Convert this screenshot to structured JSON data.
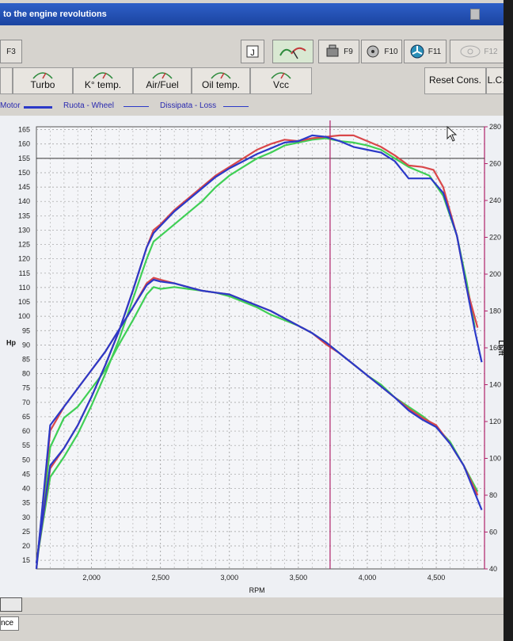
{
  "window": {
    "title": "to the engine revolutions"
  },
  "toolbar": {
    "f3": "F3",
    "f9": "F9",
    "f10": "F10",
    "f11": "F11",
    "f12": "F12"
  },
  "tabs": {
    "turbo": "Turbo",
    "ktemp": "K° temp.",
    "airfuel": "Air/Fuel",
    "oiltemp": "Oil temp.",
    "vcc": "Vcc",
    "reset": "Reset Cons.",
    "lcr": "L.C.R"
  },
  "legend": {
    "motor": "Motor",
    "wheel": "Ruota - Wheel",
    "loss": "Dissipata - Loss"
  },
  "status": {
    "text": "nce"
  },
  "colors": {
    "red": "#d9474a",
    "blue": "#2b39c8",
    "green": "#3fcf55",
    "cursor": "#b0226a",
    "refline": "#333333"
  },
  "chart_data": {
    "type": "line",
    "xlabel": "RPM",
    "ylabel_left": "Hp",
    "ylabel_right": "Lb/ft",
    "xlim": [
      1600,
      4850
    ],
    "ylim_left": [
      12,
      166
    ],
    "ylim_right": [
      40,
      280
    ],
    "x_ticks": [
      "2,000",
      "2,500",
      "3,000",
      "3,500",
      "4,000",
      "4,500"
    ],
    "x_tick_values": [
      2000,
      2500,
      3000,
      3500,
      4000,
      4500
    ],
    "y_ticks_left": [
      15,
      20,
      25,
      30,
      35,
      40,
      45,
      50,
      55,
      60,
      65,
      70,
      75,
      80,
      85,
      90,
      95,
      100,
      105,
      110,
      115,
      120,
      125,
      130,
      135,
      140,
      145,
      150,
      155,
      160,
      165
    ],
    "y_ticks_right": [
      40,
      60,
      80,
      100,
      120,
      140,
      160,
      180,
      200,
      220,
      240,
      260,
      280
    ],
    "cursor_rpm": 3730,
    "reference_hp": 155,
    "series": [
      {
        "name": "red",
        "color": "#d9474a",
        "power_hp": [
          [
            1600,
            14
          ],
          [
            1700,
            47
          ],
          [
            1800,
            54
          ],
          [
            1900,
            62
          ],
          [
            2000,
            72
          ],
          [
            2100,
            83
          ],
          [
            2200,
            95
          ],
          [
            2300,
            109
          ],
          [
            2400,
            124
          ],
          [
            2450,
            130
          ],
          [
            2500,
            132
          ],
          [
            2600,
            137
          ],
          [
            2700,
            141
          ],
          [
            2800,
            145
          ],
          [
            2900,
            149
          ],
          [
            3000,
            152
          ],
          [
            3100,
            155
          ],
          [
            3200,
            158
          ],
          [
            3300,
            160
          ],
          [
            3400,
            161.5
          ],
          [
            3500,
            161
          ],
          [
            3600,
            162
          ],
          [
            3700,
            162.5
          ],
          [
            3800,
            163
          ],
          [
            3900,
            163
          ],
          [
            4000,
            161
          ],
          [
            4100,
            159
          ],
          [
            4200,
            156
          ],
          [
            4300,
            152.5
          ],
          [
            4400,
            152
          ],
          [
            4480,
            151
          ],
          [
            4550,
            145
          ],
          [
            4650,
            128
          ],
          [
            4720,
            110
          ],
          [
            4800,
            96
          ]
        ],
        "torque_lbft": [
          [
            1600,
            40
          ],
          [
            1700,
            115
          ],
          [
            1800,
            128
          ],
          [
            1900,
            138
          ],
          [
            2000,
            148
          ],
          [
            2100,
            158
          ],
          [
            2200,
            170
          ],
          [
            2300,
            182
          ],
          [
            2400,
            195
          ],
          [
            2450,
            198
          ],
          [
            2500,
            197
          ],
          [
            2600,
            195
          ],
          [
            2700,
            193
          ],
          [
            2800,
            191
          ],
          [
            2900,
            190
          ],
          [
            3000,
            189
          ],
          [
            3100,
            186
          ],
          [
            3200,
            183
          ],
          [
            3300,
            180
          ],
          [
            3400,
            176
          ],
          [
            3500,
            172
          ],
          [
            3600,
            168
          ],
          [
            3700,
            162
          ],
          [
            3800,
            157
          ],
          [
            3900,
            151
          ],
          [
            4000,
            145
          ],
          [
            4100,
            139
          ],
          [
            4200,
            133
          ],
          [
            4300,
            127
          ],
          [
            4400,
            122
          ],
          [
            4500,
            118
          ],
          [
            4600,
            108
          ],
          [
            4700,
            96
          ],
          [
            4800,
            80
          ]
        ]
      },
      {
        "name": "blue",
        "color": "#2b39c8",
        "power_hp": [
          [
            1600,
            14
          ],
          [
            1700,
            48
          ],
          [
            1800,
            54
          ],
          [
            1900,
            62
          ],
          [
            2000,
            72
          ],
          [
            2100,
            83
          ],
          [
            2200,
            95
          ],
          [
            2300,
            109
          ],
          [
            2400,
            124
          ],
          [
            2450,
            129
          ],
          [
            2500,
            131.5
          ],
          [
            2600,
            136.5
          ],
          [
            2700,
            140.5
          ],
          [
            2800,
            144.5
          ],
          [
            2900,
            148.5
          ],
          [
            3000,
            151.5
          ],
          [
            3100,
            154
          ],
          [
            3200,
            156.5
          ],
          [
            3300,
            158.5
          ],
          [
            3400,
            160.5
          ],
          [
            3500,
            161
          ],
          [
            3600,
            163
          ],
          [
            3700,
            162.5
          ],
          [
            3800,
            161
          ],
          [
            3900,
            159
          ],
          [
            4000,
            158
          ],
          [
            4100,
            157
          ],
          [
            4200,
            154
          ],
          [
            4300,
            148
          ],
          [
            4400,
            148
          ],
          [
            4460,
            148
          ],
          [
            4550,
            143
          ],
          [
            4650,
            128
          ],
          [
            4720,
            110
          ],
          [
            4780,
            95
          ],
          [
            4830,
            84
          ]
        ],
        "torque_lbft": [
          [
            1600,
            40
          ],
          [
            1700,
            118
          ],
          [
            1800,
            128
          ],
          [
            1900,
            138
          ],
          [
            2000,
            148
          ],
          [
            2100,
            158
          ],
          [
            2200,
            170
          ],
          [
            2300,
            182
          ],
          [
            2400,
            194
          ],
          [
            2450,
            197
          ],
          [
            2500,
            196
          ],
          [
            2600,
            195
          ],
          [
            2700,
            193
          ],
          [
            2800,
            191
          ],
          [
            2900,
            190
          ],
          [
            3000,
            189
          ],
          [
            3100,
            186
          ],
          [
            3200,
            183
          ],
          [
            3300,
            180
          ],
          [
            3400,
            176
          ],
          [
            3500,
            172
          ],
          [
            3600,
            168
          ],
          [
            3700,
            163
          ],
          [
            3800,
            157
          ],
          [
            3900,
            151
          ],
          [
            4000,
            145
          ],
          [
            4100,
            139
          ],
          [
            4200,
            133
          ],
          [
            4300,
            126
          ],
          [
            4400,
            121
          ],
          [
            4500,
            117
          ],
          [
            4600,
            108
          ],
          [
            4700,
            96
          ],
          [
            4830,
            72
          ]
        ]
      },
      {
        "name": "green",
        "color": "#3fcf55",
        "power_hp": [
          [
            1600,
            14
          ],
          [
            1700,
            44
          ],
          [
            1800,
            51
          ],
          [
            1900,
            59
          ],
          [
            2000,
            69
          ],
          [
            2100,
            80
          ],
          [
            2200,
            92
          ],
          [
            2300,
            106
          ],
          [
            2400,
            120
          ],
          [
            2450,
            126
          ],
          [
            2500,
            128
          ],
          [
            2600,
            132
          ],
          [
            2700,
            136
          ],
          [
            2800,
            140
          ],
          [
            2900,
            145
          ],
          [
            3000,
            149
          ],
          [
            3100,
            152
          ],
          [
            3200,
            155
          ],
          [
            3300,
            157
          ],
          [
            3400,
            159.5
          ],
          [
            3500,
            160.5
          ],
          [
            3600,
            161.5
          ],
          [
            3700,
            162
          ],
          [
            3800,
            161
          ],
          [
            3900,
            160.5
          ],
          [
            4000,
            159.5
          ],
          [
            4100,
            158
          ],
          [
            4200,
            155
          ],
          [
            4300,
            152
          ],
          [
            4400,
            150
          ],
          [
            4450,
            149
          ],
          [
            4550,
            142
          ],
          [
            4650,
            128
          ],
          [
            4720,
            112
          ],
          [
            4780,
            96
          ]
        ],
        "torque_lbft": [
          [
            1600,
            40
          ],
          [
            1700,
            106
          ],
          [
            1800,
            122
          ],
          [
            1900,
            128
          ],
          [
            2000,
            138
          ],
          [
            2100,
            148
          ],
          [
            2200,
            162
          ],
          [
            2300,
            175
          ],
          [
            2400,
            189
          ],
          [
            2450,
            193
          ],
          [
            2500,
            192
          ],
          [
            2600,
            193
          ],
          [
            2700,
            192
          ],
          [
            2800,
            191
          ],
          [
            2900,
            190
          ],
          [
            3000,
            188
          ],
          [
            3100,
            185
          ],
          [
            3200,
            182
          ],
          [
            3300,
            178
          ],
          [
            3400,
            175
          ],
          [
            3500,
            172
          ],
          [
            3600,
            168
          ],
          [
            3700,
            163
          ],
          [
            3800,
            157
          ],
          [
            3900,
            151
          ],
          [
            4000,
            145
          ],
          [
            4100,
            140
          ],
          [
            4200,
            133
          ],
          [
            4300,
            128
          ],
          [
            4400,
            123
          ],
          [
            4500,
            117
          ],
          [
            4600,
            109
          ],
          [
            4700,
            96
          ],
          [
            4800,
            82
          ]
        ]
      }
    ]
  }
}
